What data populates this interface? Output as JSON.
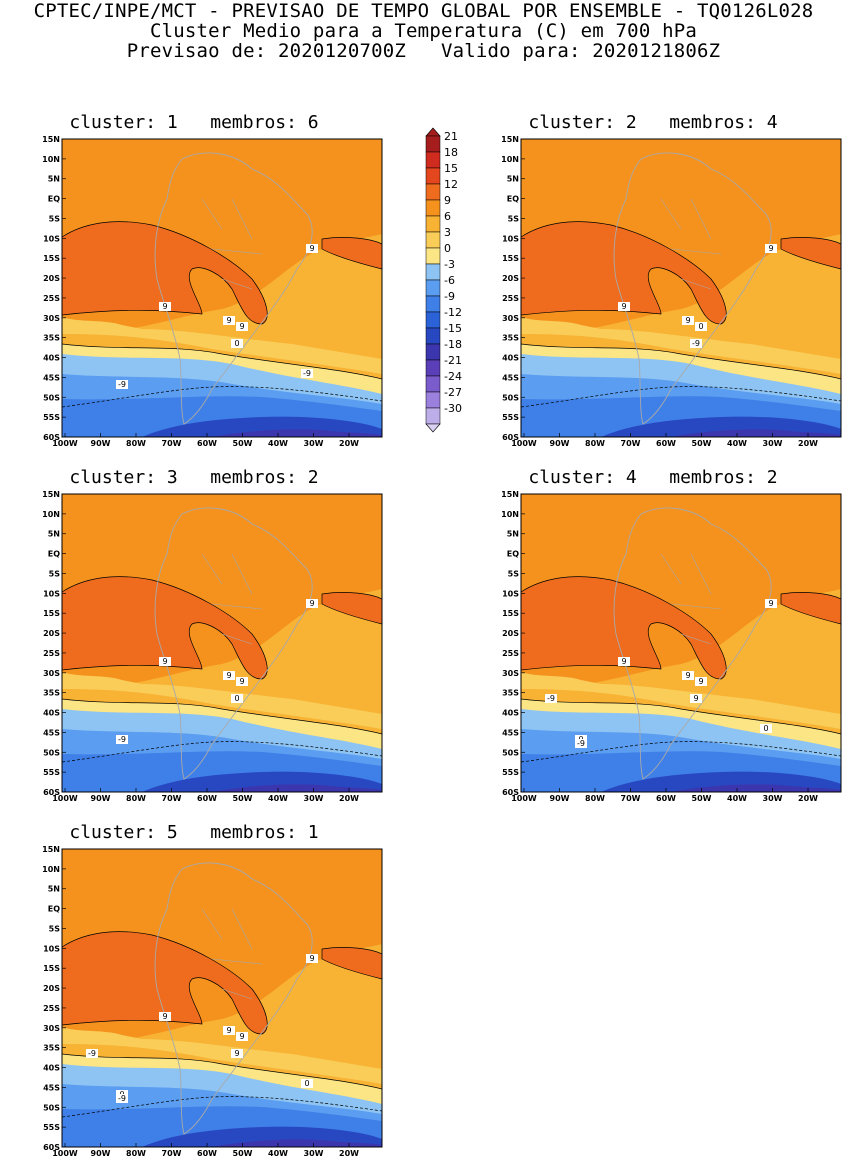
{
  "header": {
    "line1": "CPTEC/INPE/MCT - PREVISAO DE TEMPO GLOBAL POR ENSEMBLE - TQ0126L028",
    "line2": "Cluster Medio para a Temperatura (C) em 700 hPa",
    "line3": "Previsao de: 2020120700Z   Valido para: 2020121806Z"
  },
  "panels": [
    {
      "title": "cluster: 1   membros: 6",
      "labels": [
        "9",
        "9",
        "9",
        "9",
        "0",
        "-9",
        "-9"
      ]
    },
    {
      "title": "cluster: 2   membros: 4",
      "labels": [
        "9",
        "9",
        "9",
        "0",
        "-9"
      ]
    },
    {
      "title": "cluster: 3   membros: 2",
      "labels": [
        "9",
        "9",
        "9",
        "9",
        "0",
        "-9"
      ]
    },
    {
      "title": "cluster: 4   membros: 2",
      "labels": [
        "9",
        "9",
        "9",
        "9",
        "9",
        "0",
        "0",
        "-9",
        "-9"
      ]
    },
    {
      "title": "cluster: 5   membros: 1",
      "labels": [
        "9",
        "9",
        "9",
        "9",
        "9",
        "0",
        "0",
        "-9",
        "-9"
      ]
    }
  ],
  "axes": {
    "lat_labels": [
      "15N",
      "10N",
      "5N",
      "EQ",
      "5S",
      "10S",
      "15S",
      "20S",
      "25S",
      "30S",
      "35S",
      "40S",
      "45S",
      "50S",
      "55S",
      "60S"
    ],
    "lon_labels": [
      "100W",
      "90W",
      "80W",
      "70W",
      "60W",
      "50W",
      "40W",
      "30W",
      "20W"
    ]
  },
  "colorbar": {
    "labels": [
      "21",
      "18",
      "15",
      "12",
      "9",
      "6",
      "3",
      "0",
      "-3",
      "-6",
      "-9",
      "-12",
      "-15",
      "-18",
      "-21",
      "-24",
      "-27",
      "-30"
    ],
    "colors": [
      "#a61d1d",
      "#cf2b1f",
      "#e4461e",
      "#ef6c1f",
      "#f5921e",
      "#f8b234",
      "#f9cd58",
      "#fbe584",
      "#8ec4f3",
      "#5b9df0",
      "#3f7fe8",
      "#2c62d8",
      "#2848c2",
      "#3b36ae",
      "#5a3fb8",
      "#7a5ccc",
      "#9c80de",
      "#bdaeea",
      "#d9d0f3"
    ]
  }
}
